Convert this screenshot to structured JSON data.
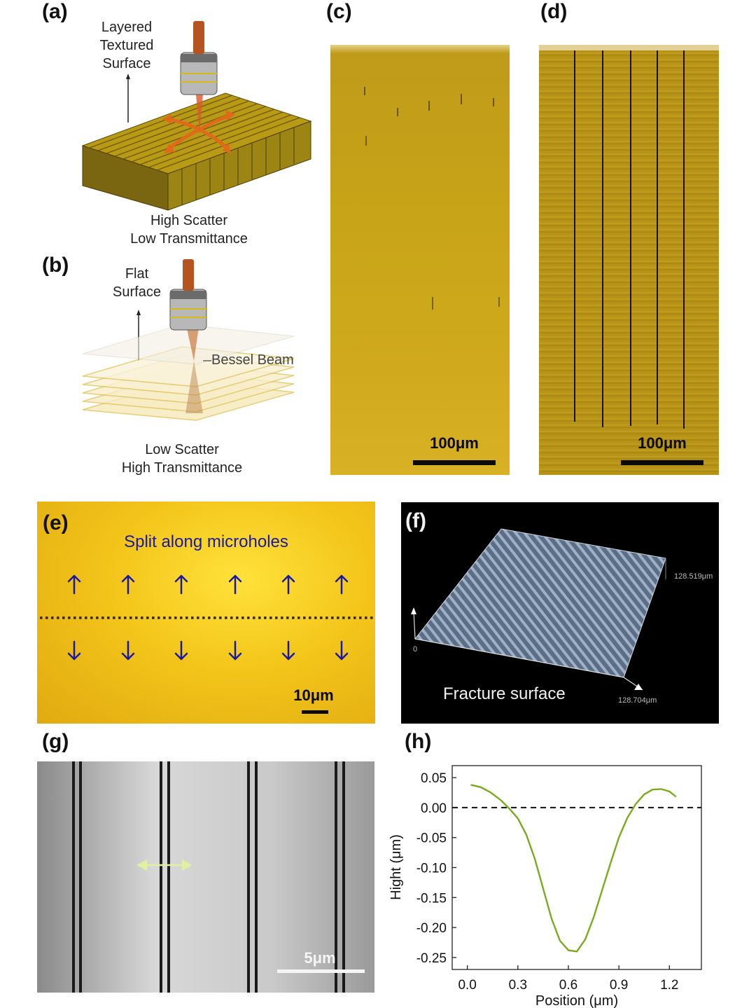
{
  "panels": {
    "a": {
      "label": "(a)",
      "surface_label_line1": "Layered",
      "surface_label_line2": "Textured",
      "surface_label_line3": "Surface",
      "caption_line1": "High Scatter",
      "caption_line2": "Low Transmittance"
    },
    "b": {
      "label": "(b)",
      "surface_label_line1": "Flat",
      "surface_label_line2": "Surface",
      "beam_label": "Bessel Beam",
      "caption_line1": "Low Scatter",
      "caption_line2": "High Transmittance"
    },
    "c": {
      "label": "(c)",
      "scale_text": "100μm"
    },
    "d": {
      "label": "(d)",
      "scale_text": "100μm"
    },
    "e": {
      "label": "(e)",
      "title": "Split along microholes",
      "scale_text": "10μm"
    },
    "f": {
      "label": "(f)",
      "caption": "Fracture surface",
      "dim_y": "128.519μm",
      "dim_x": "128.704μm",
      "origin": "0"
    },
    "g": {
      "label": "(g)",
      "scale_text": "5μm"
    },
    "h": {
      "label": "(h)"
    }
  },
  "colors": {
    "gold": "#c8a418",
    "yellow_bg": "#f2c81a",
    "arrow_blue": "#1a1aa0",
    "curve_green": "#7aab1e",
    "copper": "#b5541f"
  },
  "chart_data": {
    "type": "line",
    "xlabel": "Position (μm)",
    "ylabel": "Hight (μm)",
    "xlim": [
      -0.09,
      1.39
    ],
    "ylim": [
      -0.27,
      0.07
    ],
    "xticks": [
      0.0,
      0.3,
      0.6,
      0.9,
      1.2
    ],
    "xtick_labels": [
      "0.0",
      "0.3",
      "0.6",
      "0.9",
      "1.2"
    ],
    "yticks": [
      0.05,
      0.0,
      -0.05,
      -0.1,
      -0.15,
      -0.2,
      -0.25
    ],
    "ytick_labels": [
      "0.05",
      "0.00",
      "-0.05",
      "-0.10",
      "-0.15",
      "-0.20",
      "-0.25"
    ],
    "reference_line": {
      "y": 0.0,
      "style": "dashed"
    },
    "series": [
      {
        "x": [
          0.02,
          0.08,
          0.14,
          0.2,
          0.25,
          0.3,
          0.35,
          0.4,
          0.45,
          0.5,
          0.55,
          0.6,
          0.65,
          0.7,
          0.75,
          0.8,
          0.85,
          0.9,
          0.95,
          1.0,
          1.05,
          1.1,
          1.15,
          1.2,
          1.24
        ],
        "y": [
          0.038,
          0.034,
          0.025,
          0.012,
          -0.002,
          -0.018,
          -0.045,
          -0.085,
          -0.135,
          -0.185,
          -0.222,
          -0.238,
          -0.24,
          -0.22,
          -0.183,
          -0.138,
          -0.093,
          -0.05,
          -0.017,
          0.006,
          0.022,
          0.03,
          0.031,
          0.027,
          0.018
        ]
      }
    ]
  }
}
